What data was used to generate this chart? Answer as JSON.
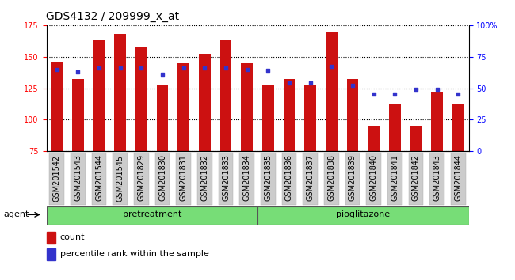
{
  "title": "GDS4132 / 209999_x_at",
  "samples": [
    "GSM201542",
    "GSM201543",
    "GSM201544",
    "GSM201545",
    "GSM201829",
    "GSM201830",
    "GSM201831",
    "GSM201832",
    "GSM201833",
    "GSM201834",
    "GSM201835",
    "GSM201836",
    "GSM201837",
    "GSM201838",
    "GSM201839",
    "GSM201840",
    "GSM201841",
    "GSM201842",
    "GSM201843",
    "GSM201844"
  ],
  "counts": [
    146,
    132,
    163,
    168,
    158,
    128,
    145,
    152,
    163,
    145,
    128,
    132,
    128,
    170,
    132,
    95,
    112,
    95,
    122,
    113
  ],
  "percentile_ranks": [
    65,
    63,
    66,
    66,
    66,
    61,
    66,
    66,
    66,
    65,
    64,
    54,
    54,
    67,
    52,
    45,
    45,
    49,
    49,
    45
  ],
  "ylim_left": [
    75,
    175
  ],
  "ylim_right": [
    0,
    100
  ],
  "yticks_left": [
    75,
    100,
    125,
    150,
    175
  ],
  "yticks_right": [
    0,
    25,
    50,
    75,
    100
  ],
  "bar_color": "#cc1111",
  "dot_color": "#3333cc",
  "group1_label": "pretreatment",
  "group2_label": "pioglitazone",
  "group1_count": 10,
  "group2_count": 10,
  "agent_label": "agent",
  "legend_count": "count",
  "legend_pct": "percentile rank within the sample",
  "bar_width": 0.55,
  "title_fontsize": 10,
  "tick_fontsize": 7,
  "label_fontsize": 8,
  "xtick_box_color": "#cccccc",
  "green_color": "#77dd77"
}
